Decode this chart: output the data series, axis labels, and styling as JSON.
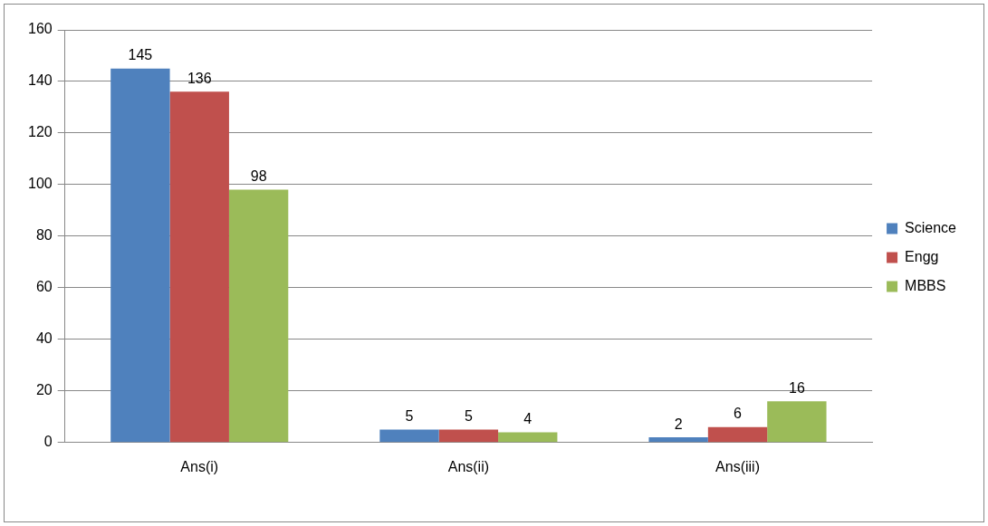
{
  "chart_data": {
    "type": "bar",
    "categories": [
      "Ans(i)",
      "Ans(ii)",
      "Ans(iii)"
    ],
    "series": [
      {
        "name": "Science",
        "color": "#4f81bd",
        "values": [
          145,
          5,
          2
        ]
      },
      {
        "name": "Engg",
        "color": "#c0504d",
        "values": [
          136,
          5,
          6
        ]
      },
      {
        "name": "MBBS",
        "color": "#9bbb59",
        "values": [
          98,
          4,
          16
        ]
      }
    ],
    "ylim": [
      0,
      160
    ],
    "yticks": [
      0,
      20,
      40,
      60,
      80,
      100,
      120,
      140,
      160
    ],
    "grid": "y",
    "legend": "right",
    "data_labels": true
  }
}
